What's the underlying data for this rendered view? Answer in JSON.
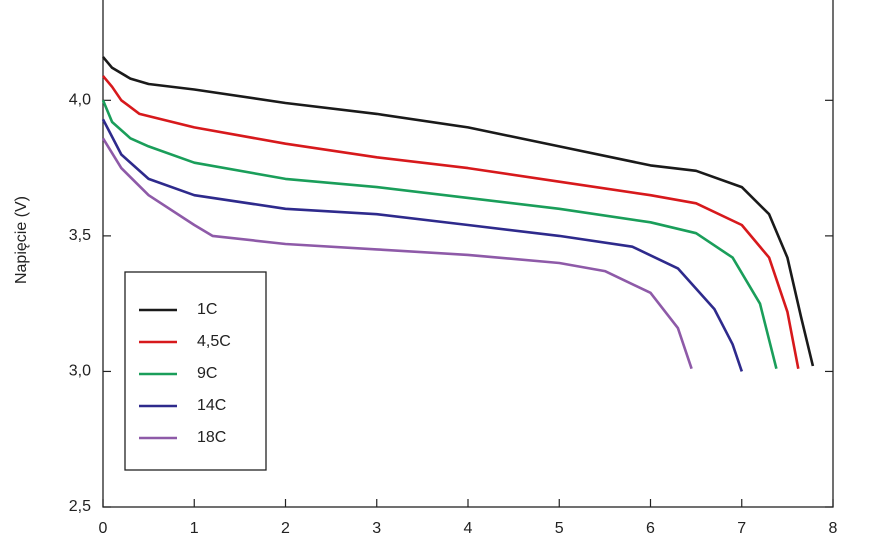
{
  "chart_data": {
    "type": "line",
    "y_label": "Napięcie (V)",
    "xlim": [
      0,
      8
    ],
    "ylim": [
      2.5,
      4.37
    ],
    "xticks": [
      0,
      1,
      2,
      3,
      4,
      5,
      6,
      7,
      8
    ],
    "yticks": [
      {
        "value": 2.5,
        "label": "2,5"
      },
      {
        "value": 3,
        "label": "3,0"
      },
      {
        "value": 3.5,
        "label": "3,5"
      },
      {
        "value": 4,
        "label": "4,0"
      }
    ],
    "legend": "lower-left",
    "series": [
      {
        "name": "1C",
        "color": "#1a1a1a",
        "x": [
          0,
          0.1,
          0.3,
          0.5,
          1,
          2,
          3,
          4,
          5,
          6,
          6.5,
          7,
          7.3,
          7.5,
          7.65,
          7.78
        ],
        "values": [
          4.16,
          4.12,
          4.08,
          4.06,
          4.04,
          3.99,
          3.95,
          3.9,
          3.83,
          3.76,
          3.74,
          3.68,
          3.58,
          3.42,
          3.2,
          3.02
        ]
      },
      {
        "name": "4,5C",
        "color": "#d7191c",
        "x": [
          0,
          0.1,
          0.2,
          0.4,
          1,
          2,
          3,
          4,
          5,
          6,
          6.5,
          7,
          7.3,
          7.5,
          7.62
        ],
        "values": [
          4.09,
          4.05,
          4.0,
          3.95,
          3.9,
          3.84,
          3.79,
          3.75,
          3.7,
          3.65,
          3.62,
          3.54,
          3.42,
          3.22,
          3.01
        ]
      },
      {
        "name": "9C",
        "color": "#1a9e5a",
        "x": [
          0,
          0.1,
          0.3,
          0.5,
          1,
          2,
          3,
          4,
          5,
          6,
          6.5,
          6.9,
          7.2,
          7.38
        ],
        "values": [
          4.0,
          3.92,
          3.86,
          3.83,
          3.77,
          3.71,
          3.68,
          3.64,
          3.6,
          3.55,
          3.51,
          3.42,
          3.25,
          3.01
        ]
      },
      {
        "name": "14C",
        "color": "#2e2a8c",
        "x": [
          0,
          0.2,
          0.5,
          1,
          2,
          3,
          4,
          5,
          5.8,
          6.3,
          6.7,
          6.9,
          7
        ],
        "values": [
          3.93,
          3.8,
          3.71,
          3.65,
          3.6,
          3.58,
          3.54,
          3.5,
          3.46,
          3.38,
          3.23,
          3.1,
          3.0
        ]
      },
      {
        "name": "18C",
        "color": "#8e5aa8",
        "x": [
          0,
          0.2,
          0.5,
          1,
          1.2,
          2,
          3,
          4,
          5,
          5.5,
          6,
          6.3,
          6.45
        ],
        "values": [
          3.86,
          3.75,
          3.65,
          3.54,
          3.5,
          3.47,
          3.45,
          3.43,
          3.4,
          3.37,
          3.29,
          3.16,
          3.01
        ]
      }
    ]
  }
}
